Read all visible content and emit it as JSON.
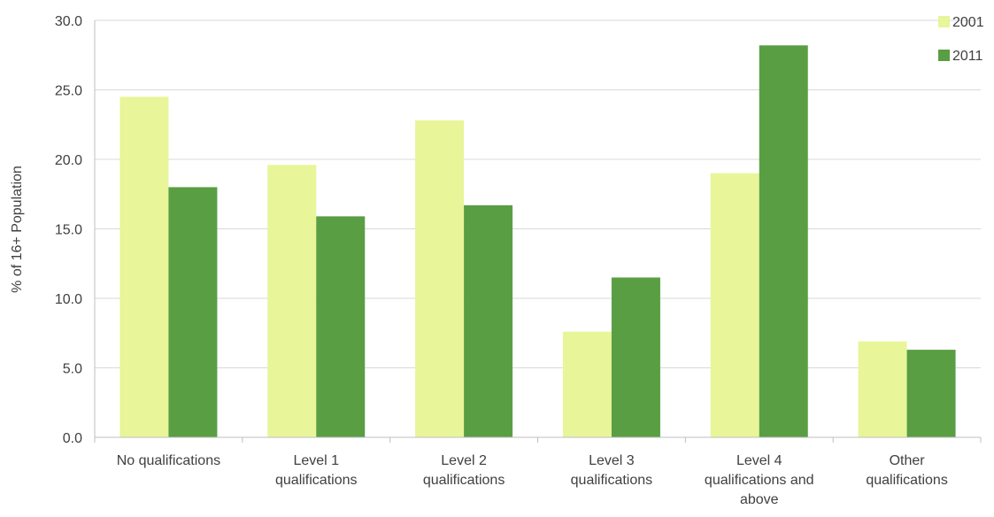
{
  "chart_data": {
    "type": "bar",
    "title": "",
    "xlabel": "",
    "ylabel": "% of 16+ Population",
    "ylim": [
      0,
      30
    ],
    "yticks": [
      "0.0",
      "5.0",
      "10.0",
      "15.0",
      "20.0",
      "25.0",
      "30.0"
    ],
    "grid": true,
    "legend_position": "top-right",
    "categories": [
      [
        "No qualifications"
      ],
      [
        "Level 1",
        "qualifications"
      ],
      [
        "Level 2",
        "qualifications"
      ],
      [
        "Level 3",
        "qualifications"
      ],
      [
        "Level 4",
        "qualifications and",
        "above"
      ],
      [
        "Other",
        "qualifications"
      ]
    ],
    "series": [
      {
        "name": "2001",
        "color": "#e8f599",
        "values": [
          24.5,
          19.6,
          22.8,
          7.6,
          19.0,
          6.9
        ]
      },
      {
        "name": "2011",
        "color": "#5a9e44",
        "values": [
          18.0,
          15.9,
          16.7,
          11.5,
          28.2,
          6.3
        ]
      }
    ]
  }
}
